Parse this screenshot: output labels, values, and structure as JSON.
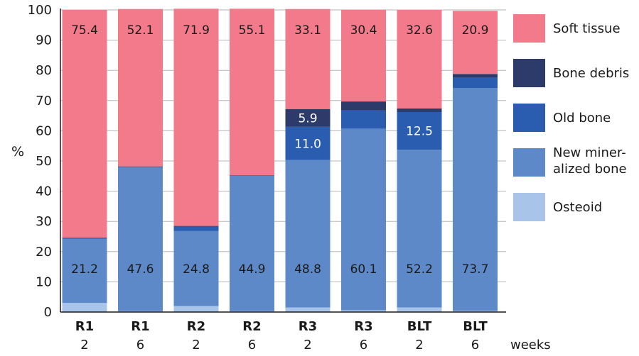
{
  "chart_data": {
    "type": "bar",
    "stacked": true,
    "categories": [
      "R1",
      "R1",
      "R2",
      "R2",
      "R3",
      "R3",
      "BLT",
      "BLT"
    ],
    "sub_categories": [
      "2",
      "6",
      "2",
      "6",
      "2",
      "6",
      "2",
      "6"
    ],
    "sub_axis_label": "weeks",
    "ylabel": "%",
    "ylim": [
      0,
      100
    ],
    "yticks": [
      0,
      10,
      20,
      30,
      40,
      50,
      60,
      70,
      80,
      90,
      100
    ],
    "grid": true,
    "legend_position": "right",
    "series": [
      {
        "name": "Osteoid",
        "color": "#a8c4e8",
        "values": [
          3.0,
          0.3,
          2.0,
          0.3,
          1.5,
          0.6,
          1.5,
          0.4
        ]
      },
      {
        "name": "New mineralized bone",
        "legend_lines": [
          "New miner-",
          "alized bone"
        ],
        "color": "#5e89c8",
        "values": [
          21.2,
          47.6,
          24.8,
          44.9,
          48.8,
          60.1,
          52.2,
          73.7
        ]
      },
      {
        "name": "Old bone",
        "color": "#2a5db0",
        "values": [
          0.2,
          0.2,
          1.5,
          0.0,
          11.0,
          6.0,
          12.5,
          3.5
        ]
      },
      {
        "name": "Bone debris",
        "color": "#2d3b6a",
        "values": [
          0.2,
          0.1,
          0.2,
          0.1,
          5.9,
          3.0,
          1.2,
          1.2
        ]
      },
      {
        "name": "Soft tissue",
        "color": "#f27a8a",
        "values": [
          75.4,
          52.1,
          71.9,
          55.1,
          33.1,
          30.4,
          32.6,
          20.9
        ]
      }
    ],
    "data_labels": [
      {
        "bar": 0,
        "series": "Soft tissue",
        "text": "75.4",
        "color": "#1a1a1a"
      },
      {
        "bar": 1,
        "series": "Soft tissue",
        "text": "52.1",
        "color": "#1a1a1a"
      },
      {
        "bar": 2,
        "series": "Soft tissue",
        "text": "71.9",
        "color": "#1a1a1a"
      },
      {
        "bar": 3,
        "series": "Soft tissue",
        "text": "55.1",
        "color": "#1a1a1a"
      },
      {
        "bar": 4,
        "series": "Soft tissue",
        "text": "33.1",
        "color": "#1a1a1a"
      },
      {
        "bar": 5,
        "series": "Soft tissue",
        "text": "30.4",
        "color": "#1a1a1a"
      },
      {
        "bar": 6,
        "series": "Soft tissue",
        "text": "32.6",
        "color": "#1a1a1a"
      },
      {
        "bar": 7,
        "series": "Soft tissue",
        "text": "20.9",
        "color": "#1a1a1a"
      },
      {
        "bar": 0,
        "series": "New mineralized bone",
        "text": "21.2",
        "color": "#1a1a1a"
      },
      {
        "bar": 1,
        "series": "New mineralized bone",
        "text": "47.6",
        "color": "#1a1a1a"
      },
      {
        "bar": 2,
        "series": "New mineralized bone",
        "text": "24.8",
        "color": "#1a1a1a"
      },
      {
        "bar": 3,
        "series": "New mineralized bone",
        "text": "44.9",
        "color": "#1a1a1a"
      },
      {
        "bar": 4,
        "series": "New mineralized bone",
        "text": "48.8",
        "color": "#1a1a1a"
      },
      {
        "bar": 5,
        "series": "New mineralized bone",
        "text": "60.1",
        "color": "#1a1a1a"
      },
      {
        "bar": 6,
        "series": "New mineralized bone",
        "text": "52.2",
        "color": "#1a1a1a"
      },
      {
        "bar": 7,
        "series": "New mineralized bone",
        "text": "73.7",
        "color": "#1a1a1a"
      },
      {
        "bar": 4,
        "series": "Old bone",
        "text": "11.0",
        "color": "#ffffff"
      },
      {
        "bar": 4,
        "series": "Bone debris",
        "text": "5.9",
        "color": "#ffffff"
      },
      {
        "bar": 6,
        "series": "Old bone",
        "text": "12.5",
        "color": "#ffffff"
      }
    ]
  }
}
